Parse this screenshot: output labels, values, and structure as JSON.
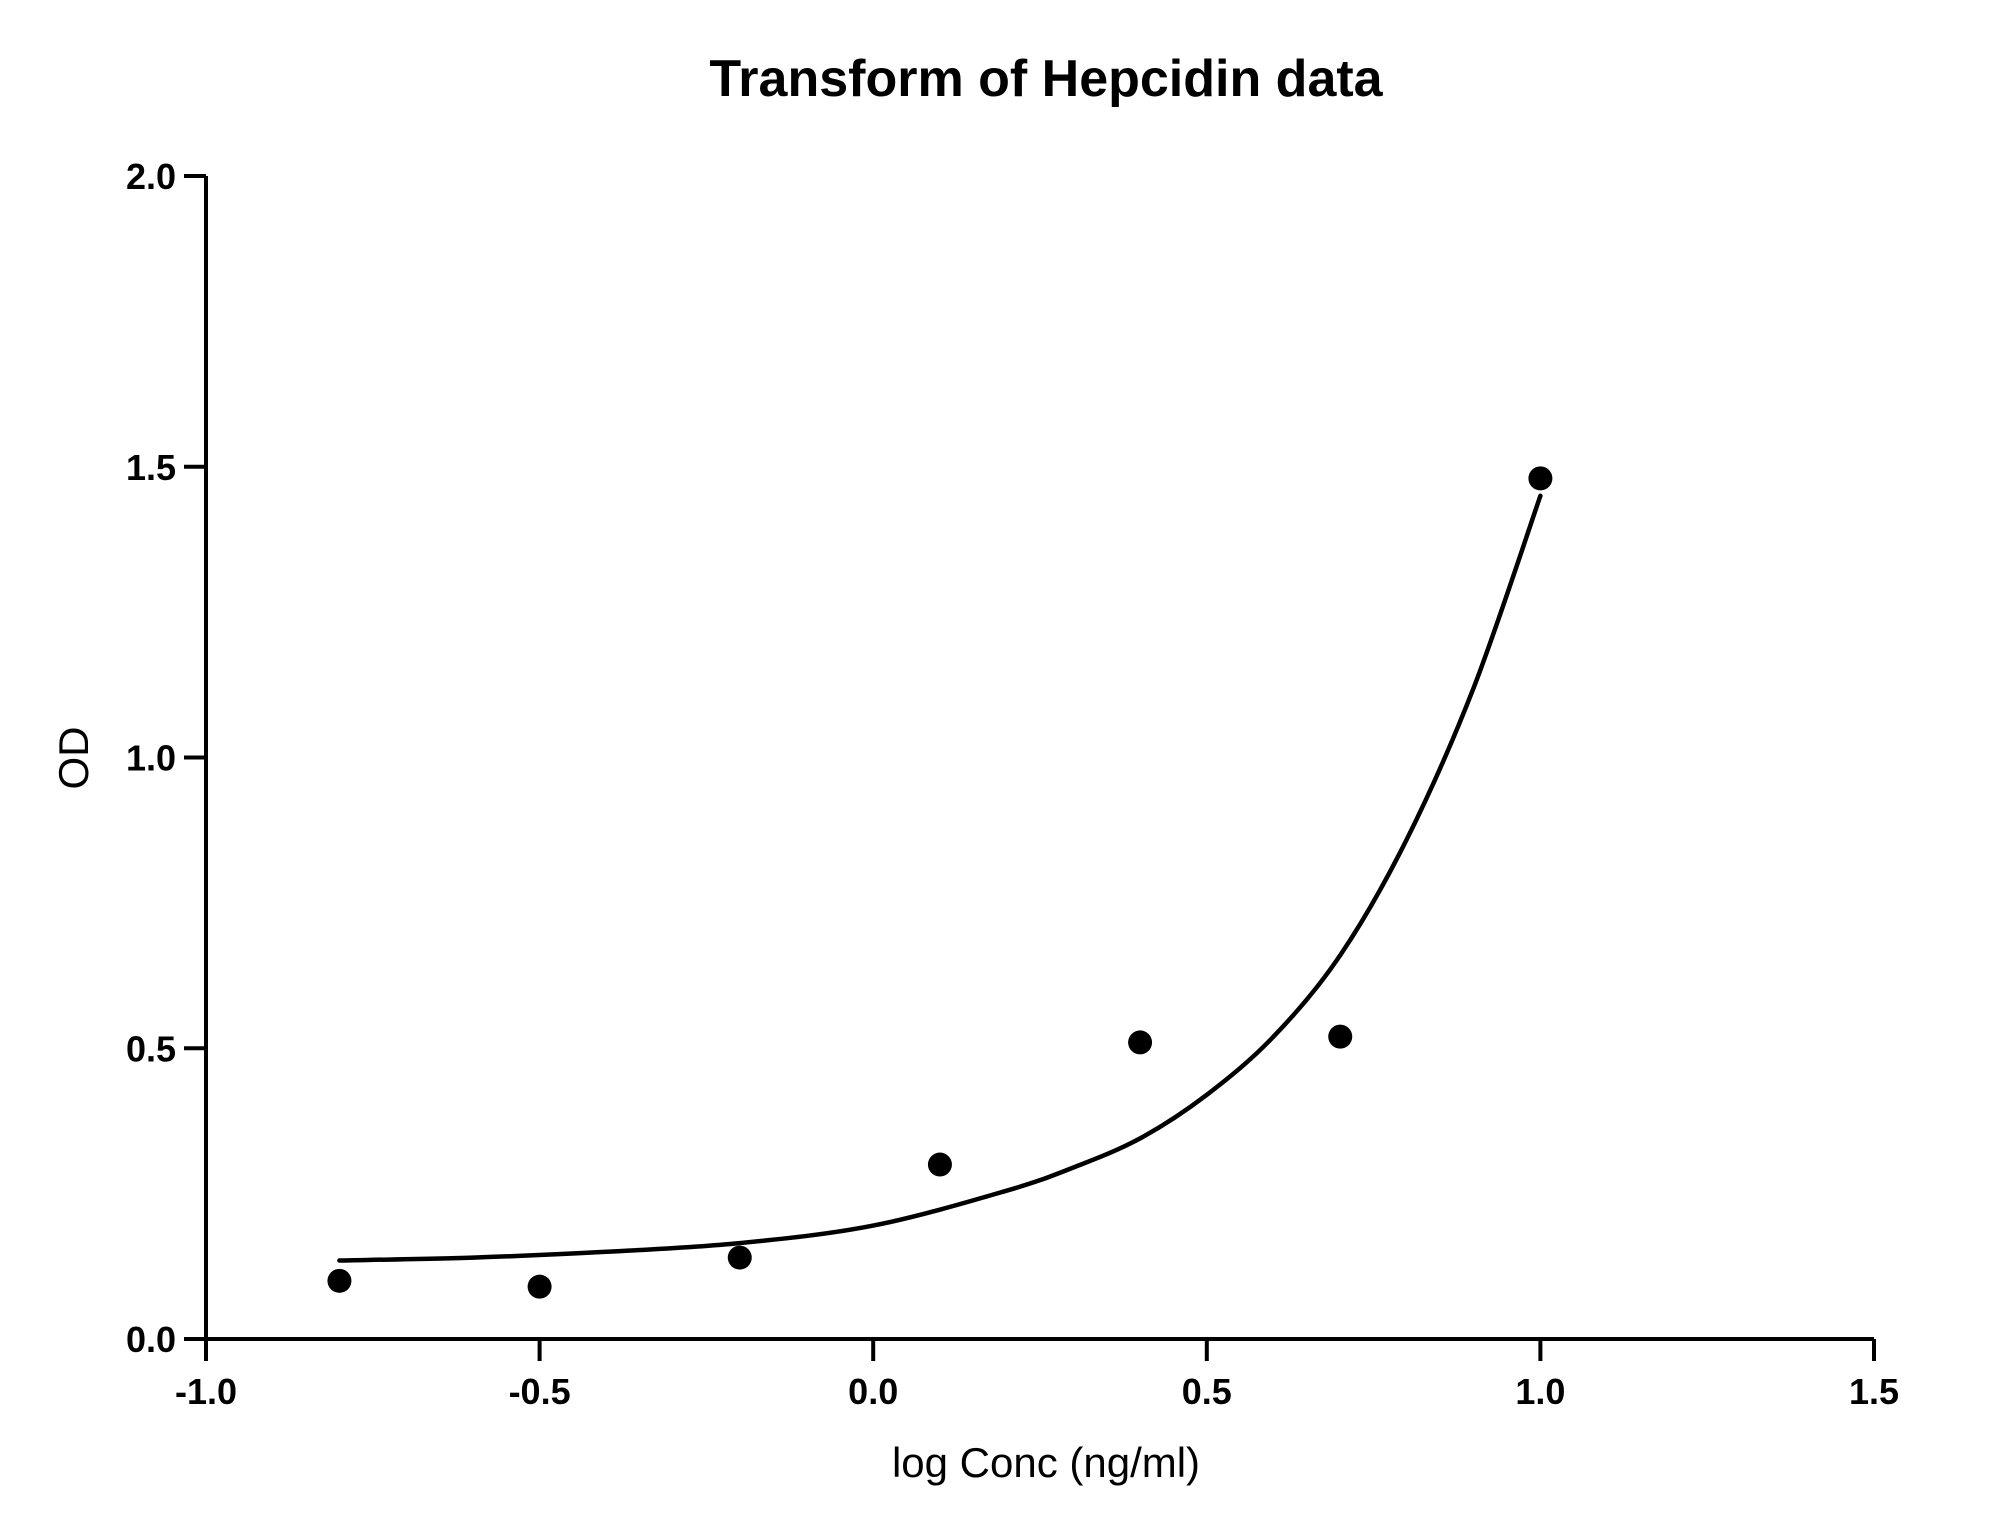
{
  "chart_data": {
    "type": "scatter",
    "title": "Transform of Hepcidin data",
    "xlabel": "log Conc (ng/ml)",
    "ylabel": "OD",
    "xlim": [
      -1.0,
      1.5
    ],
    "ylim": [
      0.0,
      2.0
    ],
    "xticks": [
      "-1.0",
      "-0.5",
      "0.0",
      "0.5",
      "1.0",
      "1.5"
    ],
    "yticks": [
      "0.0",
      "0.5",
      "1.0",
      "1.5",
      "2.0"
    ],
    "grid": false,
    "series": [
      {
        "points": [
          {
            "x": -0.8,
            "y": 0.1
          },
          {
            "x": -0.5,
            "y": 0.09
          },
          {
            "x": -0.2,
            "y": 0.14
          },
          {
            "x": 0.1,
            "y": 0.3
          },
          {
            "x": 0.4,
            "y": 0.51
          },
          {
            "x": 0.7,
            "y": 0.52
          },
          {
            "x": 1.0,
            "y": 1.48
          }
        ]
      }
    ],
    "fit_curve": {
      "x": [
        -0.8,
        -0.6,
        -0.4,
        -0.2,
        0.0,
        0.2,
        0.3,
        0.4,
        0.5,
        0.6,
        0.7,
        0.8,
        0.9,
        1.0
      ],
      "y": [
        0.135,
        0.14,
        0.15,
        0.165,
        0.195,
        0.255,
        0.295,
        0.345,
        0.42,
        0.52,
        0.66,
        0.86,
        1.12,
        1.45
      ]
    },
    "colors": {
      "marks": "#000000",
      "background": "#ffffff"
    }
  }
}
